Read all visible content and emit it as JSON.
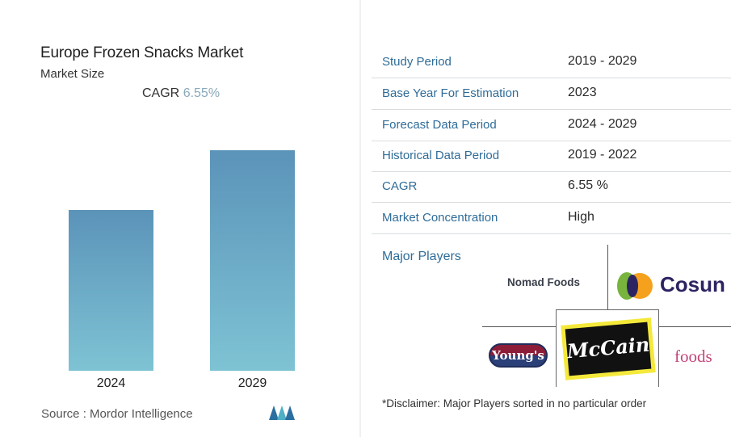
{
  "left_panel": {
    "title": "Europe Frozen Snacks Market",
    "subtitle": "Market Size",
    "cagr_label": "CAGR",
    "cagr_value": "6.55%",
    "source": "Source :  Mordor Intelligence"
  },
  "chart_data": {
    "type": "bar",
    "title": "Europe Frozen Snacks Market",
    "subtitle": "Market Size",
    "categories": [
      "2024",
      "2029"
    ],
    "colors": [
      "#5b93b9",
      "#7ec3d4"
    ],
    "grid": false
  },
  "table": {
    "rows": [
      {
        "label": "Study Period",
        "value": "2019 - 2029"
      },
      {
        "label": "Base Year For Estimation",
        "value": "2023"
      },
      {
        "label": "Forecast Data Period",
        "value": "2024 - 2029"
      },
      {
        "label": "Historical Data Period",
        "value": "2019 - 2022"
      },
      {
        "label": "CAGR",
        "value": "6.55 %"
      },
      {
        "label": "Market Concentration",
        "value": "High"
      }
    ]
  },
  "players": {
    "heading": "Major Players",
    "names": [
      "Nomad Foods",
      "Cosun",
      "Young's",
      "McCain",
      "foods"
    ],
    "disclaimer": "*Disclaimer: Major Players sorted in no particular order"
  }
}
